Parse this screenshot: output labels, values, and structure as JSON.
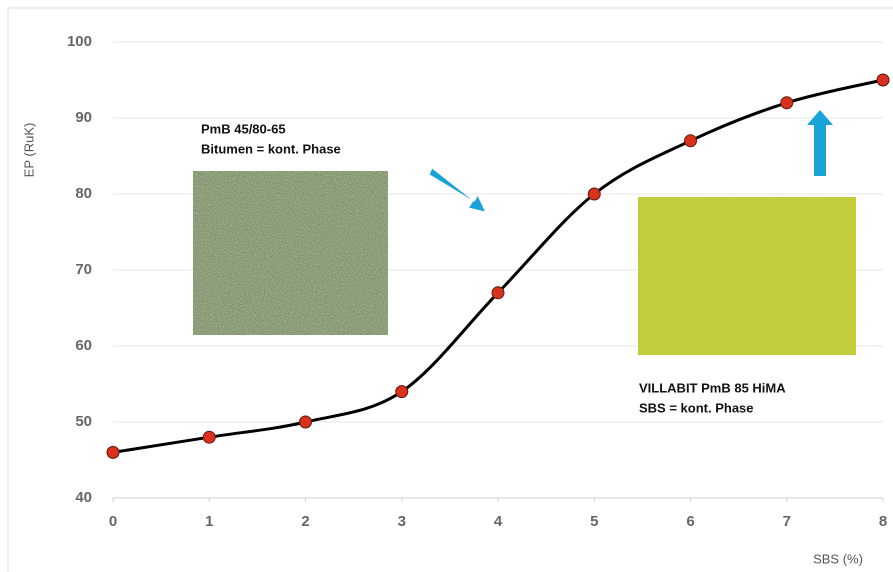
{
  "chart_data": {
    "type": "line",
    "x": [
      0,
      1,
      2,
      3,
      4,
      5,
      6,
      7,
      8
    ],
    "values": [
      46,
      48,
      50,
      54,
      67,
      80,
      87,
      92,
      95
    ],
    "color": "#000000",
    "marker_color": "#d9311b",
    "xlim": [
      0,
      8
    ],
    "xticks": [
      0,
      1,
      2,
      3,
      4,
      5,
      6,
      7,
      8
    ],
    "ylim": [
      40,
      100
    ],
    "yticks": [
      40,
      50,
      60,
      70,
      80,
      90,
      100
    ],
    "grid": true,
    "y_label": "EP (RuK)",
    "x_label": "SBS (%)",
    "annotations": [
      "PmB 45/80-65",
      "Bitumen = kont. Phase",
      "VILLABIT PmB 85 HiMA",
      "SBS = kont. Phase"
    ]
  }
}
